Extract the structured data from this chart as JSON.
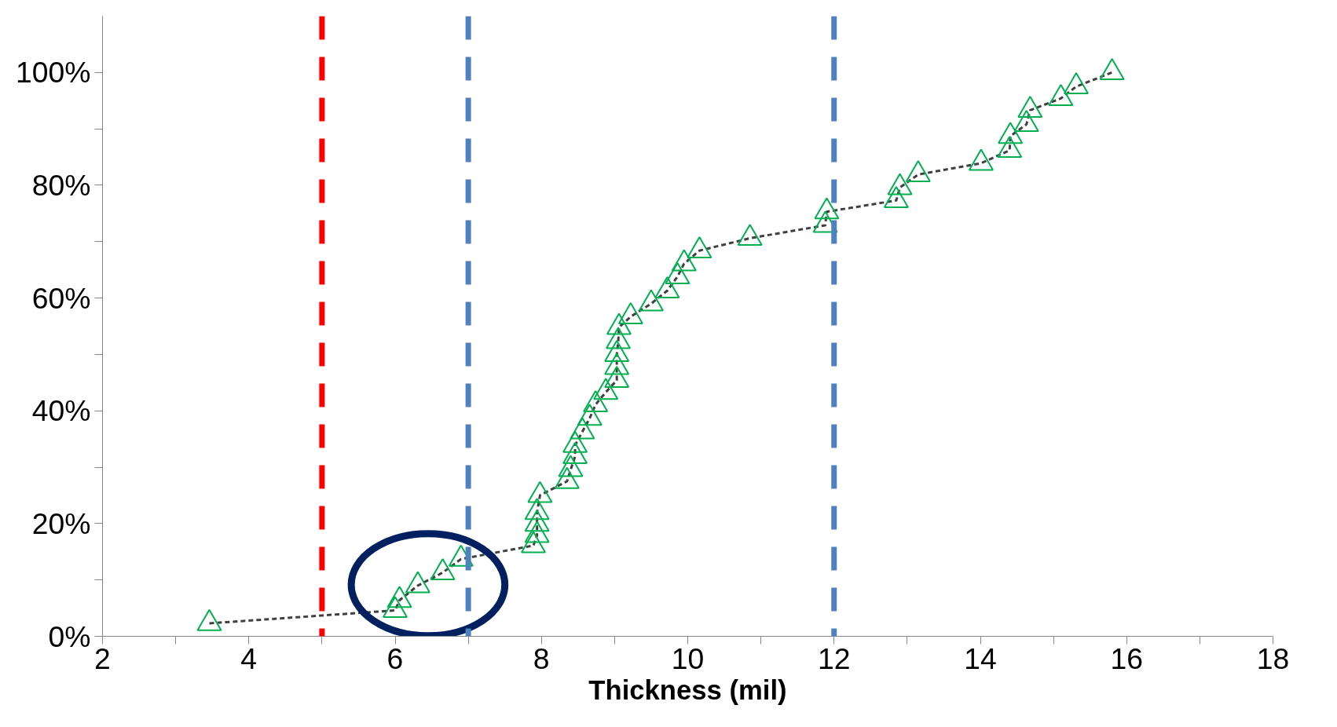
{
  "chart_data": {
    "type": "scatter",
    "xlabel": "Thickness (mil)",
    "xlim": [
      2,
      18
    ],
    "ylim": [
      0,
      110
    ],
    "xticks": [
      2,
      {
        "value": 3,
        "label": null
      },
      4,
      {
        "value": 5,
        "label": null
      },
      6,
      {
        "value": 7,
        "label": null
      },
      8,
      {
        "value": 9,
        "label": null
      },
      10,
      {
        "value": 11,
        "label": null
      },
      12,
      {
        "value": 13,
        "label": null
      },
      14,
      {
        "value": 15,
        "label": null
      },
      16,
      {
        "value": 17,
        "label": null
      },
      18
    ],
    "yticks": [
      {
        "value": 0,
        "label": "0%"
      },
      {
        "value": 10,
        "label": null
      },
      {
        "value": 20,
        "label": "20%"
      },
      {
        "value": 30,
        "label": null
      },
      {
        "value": 40,
        "label": "40%"
      },
      {
        "value": 50,
        "label": null
      },
      {
        "value": 60,
        "label": "60%"
      },
      {
        "value": 70,
        "label": null
      },
      {
        "value": 80,
        "label": "80%"
      },
      {
        "value": 90,
        "label": null
      },
      {
        "value": 100,
        "label": "100%"
      }
    ],
    "grid": false,
    "series": [
      {
        "type": "line",
        "color": "#404040",
        "line_style": "dashed",
        "marker": "none",
        "x": [
          3.46,
          6.0,
          6.06,
          6.31,
          6.65,
          6.9,
          7.89,
          7.94,
          7.94,
          7.94,
          7.98,
          8.35,
          8.4,
          8.46,
          8.46,
          8.56,
          8.66,
          8.74,
          8.88,
          9.03,
          9.03,
          9.03,
          9.05,
          9.06,
          9.22,
          9.5,
          9.72,
          9.86,
          9.95,
          10.16,
          10.85,
          11.88,
          11.9,
          12.85,
          12.9,
          13.15,
          14.01,
          14.4,
          14.41,
          14.63,
          14.68,
          15.1,
          15.31,
          15.8
        ],
        "values": [
          2.3,
          4.6,
          6.4,
          9,
          11.3,
          13.7,
          16.1,
          17.9,
          19.9,
          22,
          25,
          27.5,
          29.6,
          31.9,
          33.9,
          36.3,
          38.7,
          41.1,
          43.3,
          45.4,
          47.7,
          50,
          52.3,
          54.8,
          56.7,
          59,
          61.3,
          63.8,
          66.1,
          68.4,
          70.6,
          72.9,
          75.3,
          77.3,
          79.6,
          81.9,
          83.9,
          86.2,
          88.7,
          90.8,
          93.3,
          95.4,
          97.5,
          100
        ]
      },
      {
        "color": "#00b050",
        "marker": "triangle",
        "x": [
          3.46,
          6.65,
          7.89,
          7.94,
          7.94,
          7.94,
          7.98,
          8.35,
          8.4,
          8.46,
          8.46,
          8.56,
          8.66,
          8.74,
          8.88,
          9.03,
          9.03,
          9.03,
          9.05,
          9.06,
          9.22,
          9.5,
          9.72,
          9.86,
          9.95,
          10.16,
          10.85,
          11.88,
          11.9,
          12.85,
          12.9,
          13.15,
          14.01,
          14.4,
          14.41,
          14.63,
          14.68,
          15.1,
          15.31,
          15.8
        ],
        "values": [
          2.3,
          11.3,
          16.1,
          17.9,
          19.9,
          22,
          25,
          27.5,
          29.6,
          31.9,
          33.9,
          36.3,
          38.7,
          41.1,
          43.3,
          45.4,
          47.7,
          50,
          52.3,
          54.8,
          56.7,
          59,
          61.3,
          63.8,
          66.1,
          68.4,
          70.6,
          72.9,
          75.3,
          77.3,
          79.6,
          81.9,
          83.9,
          86.2,
          88.7,
          90.8,
          93.3,
          95.4,
          97.5,
          100
        ]
      },
      {
        "color": "#00b050",
        "marker": "triangle",
        "x": [
          6.0,
          6.06,
          6.31,
          6.9
        ],
        "values": [
          4.6,
          6.4,
          9,
          13.7
        ]
      }
    ],
    "ref_lines": [
      {
        "axis": "x",
        "value": 5,
        "color": "#ff0000",
        "line_style": "dashed"
      },
      {
        "axis": "x",
        "value": 7,
        "color": "#4f81bd",
        "line_style": "dashed"
      },
      {
        "axis": "x",
        "value": 12,
        "color": "#4f81bd",
        "line_style": "dashed"
      }
    ]
  }
}
